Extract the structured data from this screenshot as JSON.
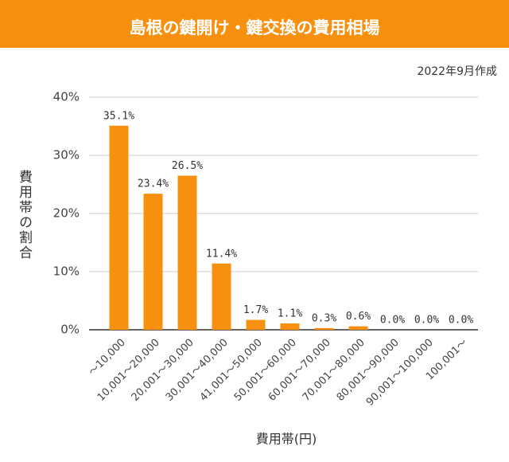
{
  "chart_data": {
    "type": "bar",
    "title": "島根の鍵開け・鍵交換の費用相場",
    "subtitle": "2022年9月作成",
    "y_label": "費用帯の割合",
    "x_label": "費用帯(円)",
    "categories": [
      "〜10,000",
      "10,001〜20,000",
      "20,001〜30,000",
      "30,001〜40,000",
      "41,001〜50,000",
      "50,001〜60,000",
      "60,001〜70,000",
      "70,001〜80,000",
      "80,001〜90,000",
      "90,001〜100,000",
      "100,001〜"
    ],
    "values": [
      35.1,
      23.4,
      26.5,
      11.4,
      1.7,
      1.1,
      0.3,
      0.6,
      0.0,
      0.0,
      0.0
    ],
    "value_labels": [
      "35.1%",
      "23.4%",
      "26.5%",
      "11.4%",
      "1.7%",
      "1.1%",
      "0.3%",
      "0.6%",
      "0.0%",
      "0.0%",
      "0.0%"
    ],
    "color": "#f7900e",
    "ylim": [
      0,
      40
    ],
    "yticks": [
      {
        "value": 0,
        "label": "0%"
      },
      {
        "value": 10,
        "label": "10%"
      },
      {
        "value": 20,
        "label": "20%"
      },
      {
        "value": 30,
        "label": "30%"
      },
      {
        "value": 40,
        "label": "40%"
      }
    ],
    "grid": true
  }
}
